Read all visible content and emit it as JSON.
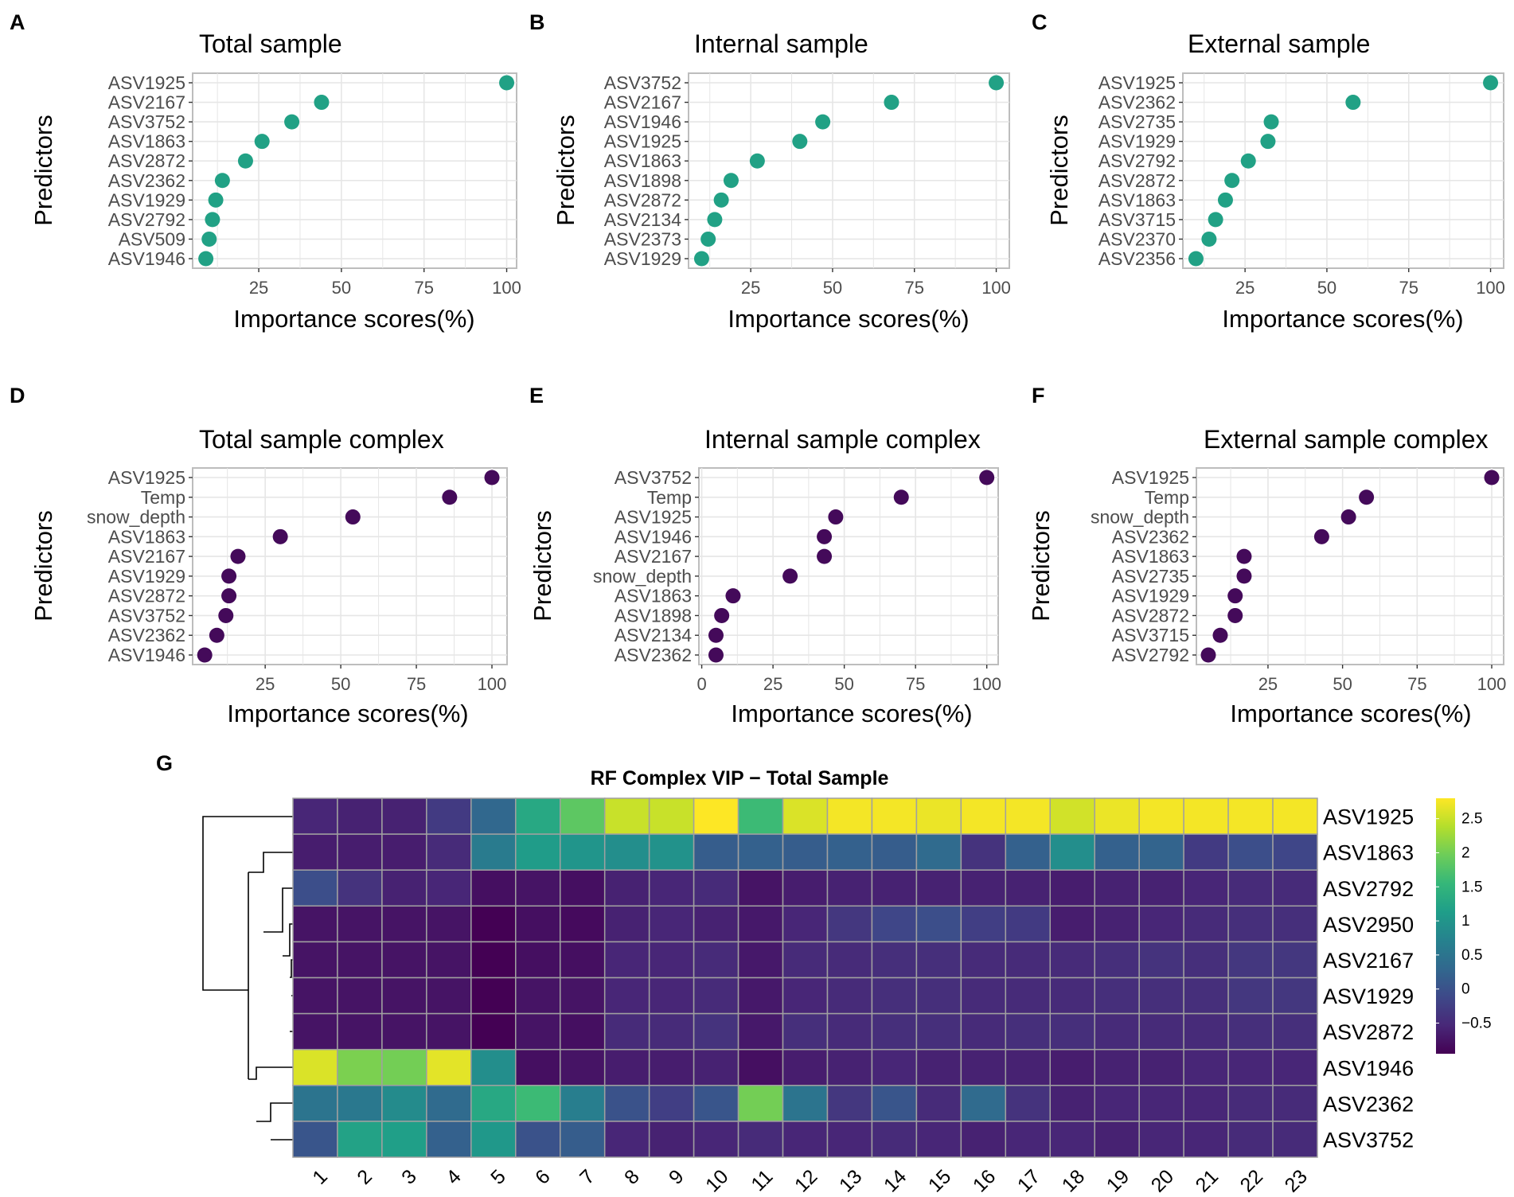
{
  "colors": {
    "dot_teal": "#21A185",
    "dot_purple": "#440A5A",
    "grid": "#E6E6E6",
    "panel_border": "#BDBDBD",
    "cell_border": "#A0A0A0",
    "viridis": [
      "#440154",
      "#482878",
      "#3E4989",
      "#31688E",
      "#26828E",
      "#1F9E89",
      "#35B779",
      "#6DCD59",
      "#B4DE2C",
      "#FDE725"
    ]
  },
  "chart_data": [
    {
      "panel": "A",
      "type": "scatter",
      "title": "Total sample",
      "xlabel": "Importance scores(%)",
      "ylabel": "Predictors",
      "xlim": [
        5,
        103
      ],
      "xticks": [
        25,
        50,
        75,
        100
      ],
      "color": "teal",
      "categories": [
        "ASV1925",
        "ASV2167",
        "ASV3752",
        "ASV1863",
        "ASV2872",
        "ASV2362",
        "ASV1929",
        "ASV2792",
        "ASV509",
        "ASV1946"
      ],
      "values": [
        100,
        44,
        35,
        26,
        21,
        14,
        12,
        11,
        10,
        9
      ]
    },
    {
      "panel": "B",
      "type": "scatter",
      "title": "Internal sample",
      "xlabel": "Importance scores(%)",
      "ylabel": "Predictors",
      "xlim": [
        6,
        104
      ],
      "xticks": [
        25,
        50,
        75,
        100
      ],
      "color": "teal",
      "categories": [
        "ASV3752",
        "ASV2167",
        "ASV1946",
        "ASV1925",
        "ASV1863",
        "ASV1898",
        "ASV2872",
        "ASV2134",
        "ASV2373",
        "ASV1929"
      ],
      "values": [
        100,
        68,
        47,
        40,
        27,
        19,
        16,
        14,
        12,
        10
      ]
    },
    {
      "panel": "C",
      "type": "scatter",
      "title": "External sample",
      "xlabel": "Importance scores(%)",
      "ylabel": "Predictors",
      "xlim": [
        6,
        104
      ],
      "xticks": [
        25,
        50,
        75,
        100
      ],
      "color": "teal",
      "categories": [
        "ASV1925",
        "ASV2362",
        "ASV2735",
        "ASV1929",
        "ASV2792",
        "ASV2872",
        "ASV1863",
        "ASV3715",
        "ASV2370",
        "ASV2356"
      ],
      "values": [
        100,
        58,
        33,
        32,
        26,
        21,
        19,
        16,
        14,
        10
      ]
    },
    {
      "panel": "D",
      "type": "scatter",
      "title": "Total sample complex",
      "xlabel": "Importance scores(%)",
      "ylabel": "Predictors",
      "xlim": [
        1,
        105
      ],
      "xticks": [
        25,
        50,
        75,
        100
      ],
      "color": "purple",
      "categories": [
        "ASV1925",
        "Temp",
        "snow_depth",
        "ASV1863",
        "ASV2167",
        "ASV1929",
        "ASV2872",
        "ASV3752",
        "ASV2362",
        "ASV1946"
      ],
      "values": [
        100,
        86,
        54,
        30,
        16,
        13,
        13,
        12,
        9,
        5
      ]
    },
    {
      "panel": "E",
      "type": "scatter",
      "title": "Internal sample complex",
      "xlabel": "Importance scores(%)",
      "ylabel": "Predictors",
      "xlim": [
        -1,
        104
      ],
      "xticks": [
        0,
        25,
        50,
        75,
        100
      ],
      "color": "purple",
      "categories": [
        "ASV3752",
        "Temp",
        "ASV1925",
        "ASV1946",
        "ASV2167",
        "snow_depth",
        "ASV1863",
        "ASV1898",
        "ASV2134",
        "ASV2362"
      ],
      "values": [
        100,
        70,
        47,
        43,
        43,
        31,
        11,
        7,
        5,
        5
      ]
    },
    {
      "panel": "F",
      "type": "scatter",
      "title": "External sample complex",
      "xlabel": "Importance scores(%)",
      "ylabel": "Predictors",
      "xlim": [
        1,
        104
      ],
      "xticks": [
        25,
        50,
        75,
        100
      ],
      "color": "purple",
      "categories": [
        "ASV1925",
        "Temp",
        "snow_depth",
        "ASV2362",
        "ASV1863",
        "ASV2735",
        "ASV1929",
        "ASV2872",
        "ASV3715",
        "ASV2792"
      ],
      "values": [
        100,
        58,
        52,
        43,
        17,
        17,
        14,
        14,
        9,
        5
      ]
    },
    {
      "panel": "G",
      "type": "heatmap",
      "title": "RF Complex VIP − Total Sample",
      "rows": [
        "ASV1925",
        "ASV1863",
        "ASV2792",
        "ASV2950",
        "ASV2167",
        "ASV1929",
        "ASV2872",
        "ASV1946",
        "ASV2362",
        "ASV3752"
      ],
      "columns": [
        "1",
        "2",
        "3",
        "4",
        "5",
        "6",
        "7",
        "8",
        "9",
        "10",
        "11",
        "12",
        "13",
        "14",
        "15",
        "16",
        "17",
        "18",
        "19",
        "20",
        "21",
        "22",
        "23"
      ],
      "values": [
        [
          -0.55,
          -0.6,
          -0.6,
          -0.3,
          0.3,
          1.3,
          1.85,
          2.5,
          2.5,
          2.8,
          1.6,
          2.6,
          2.75,
          2.75,
          2.7,
          2.75,
          2.75,
          2.55,
          2.7,
          2.75,
          2.75,
          2.75,
          2.75
        ],
        [
          -0.65,
          -0.65,
          -0.65,
          -0.5,
          0.6,
          1.1,
          1.0,
          0.9,
          0.95,
          0.15,
          0.2,
          0.15,
          0.2,
          0.15,
          0.35,
          -0.4,
          0.2,
          0.9,
          0.2,
          0.25,
          -0.3,
          -0.05,
          -0.15
        ],
        [
          -0.05,
          -0.4,
          -0.6,
          -0.55,
          -0.8,
          -0.75,
          -0.8,
          -0.6,
          -0.55,
          -0.5,
          -0.75,
          -0.65,
          -0.6,
          -0.6,
          -0.6,
          -0.6,
          -0.6,
          -0.65,
          -0.6,
          -0.6,
          -0.55,
          -0.5,
          -0.5
        ],
        [
          -0.75,
          -0.75,
          -0.75,
          -0.75,
          -0.95,
          -0.8,
          -0.85,
          -0.6,
          -0.55,
          -0.6,
          -0.7,
          -0.55,
          -0.35,
          -0.15,
          -0.05,
          -0.25,
          -0.3,
          -0.65,
          -0.6,
          -0.55,
          -0.5,
          -0.45,
          -0.45
        ],
        [
          -0.75,
          -0.75,
          -0.75,
          -0.75,
          -0.95,
          -0.8,
          -0.8,
          -0.55,
          -0.55,
          -0.5,
          -0.7,
          -0.5,
          -0.5,
          -0.45,
          -0.45,
          -0.5,
          -0.5,
          -0.5,
          -0.45,
          -0.4,
          -0.45,
          -0.35,
          -0.35
        ],
        [
          -0.75,
          -0.75,
          -0.75,
          -0.75,
          -0.95,
          -0.75,
          -0.75,
          -0.55,
          -0.55,
          -0.5,
          -0.7,
          -0.55,
          -0.5,
          -0.45,
          -0.45,
          -0.5,
          -0.5,
          -0.5,
          -0.45,
          -0.45,
          -0.45,
          -0.35,
          -0.35
        ],
        [
          -0.75,
          -0.75,
          -0.75,
          -0.75,
          -0.95,
          -0.75,
          -0.8,
          -0.5,
          -0.5,
          -0.4,
          -0.7,
          -0.45,
          -0.5,
          -0.45,
          -0.45,
          -0.5,
          -0.45,
          -0.45,
          -0.5,
          -0.5,
          -0.5,
          -0.45,
          -0.45
        ],
        [
          2.6,
          2.05,
          2.0,
          2.65,
          0.9,
          -0.8,
          -0.75,
          -0.65,
          -0.65,
          -0.6,
          -0.8,
          -0.65,
          -0.6,
          -0.55,
          -0.6,
          -0.6,
          -0.6,
          -0.65,
          -0.6,
          -0.6,
          -0.55,
          -0.55,
          -0.55
        ],
        [
          0.5,
          0.55,
          0.85,
          0.35,
          1.3,
          1.6,
          0.65,
          0.0,
          -0.25,
          0.05,
          2.0,
          0.5,
          -0.35,
          0.05,
          -0.5,
          0.35,
          -0.4,
          -0.6,
          -0.55,
          -0.55,
          -0.55,
          -0.5,
          -0.5
        ],
        [
          0.05,
          1.2,
          1.15,
          0.2,
          1.05,
          0.0,
          0.15,
          -0.55,
          -0.6,
          -0.55,
          -0.5,
          -0.55,
          -0.55,
          -0.5,
          -0.55,
          -0.6,
          -0.55,
          -0.55,
          -0.6,
          -0.55,
          -0.55,
          -0.5,
          -0.5
        ]
      ],
      "color_range": [
        -0.95,
        2.8
      ],
      "legend_ticks": [
        "2.5",
        "2",
        "1.5",
        "1",
        "0.5",
        "0",
        "−0.5"
      ],
      "legend_tick_values": [
        2.5,
        2,
        1.5,
        1,
        0.5,
        0,
        -0.5
      ]
    }
  ]
}
